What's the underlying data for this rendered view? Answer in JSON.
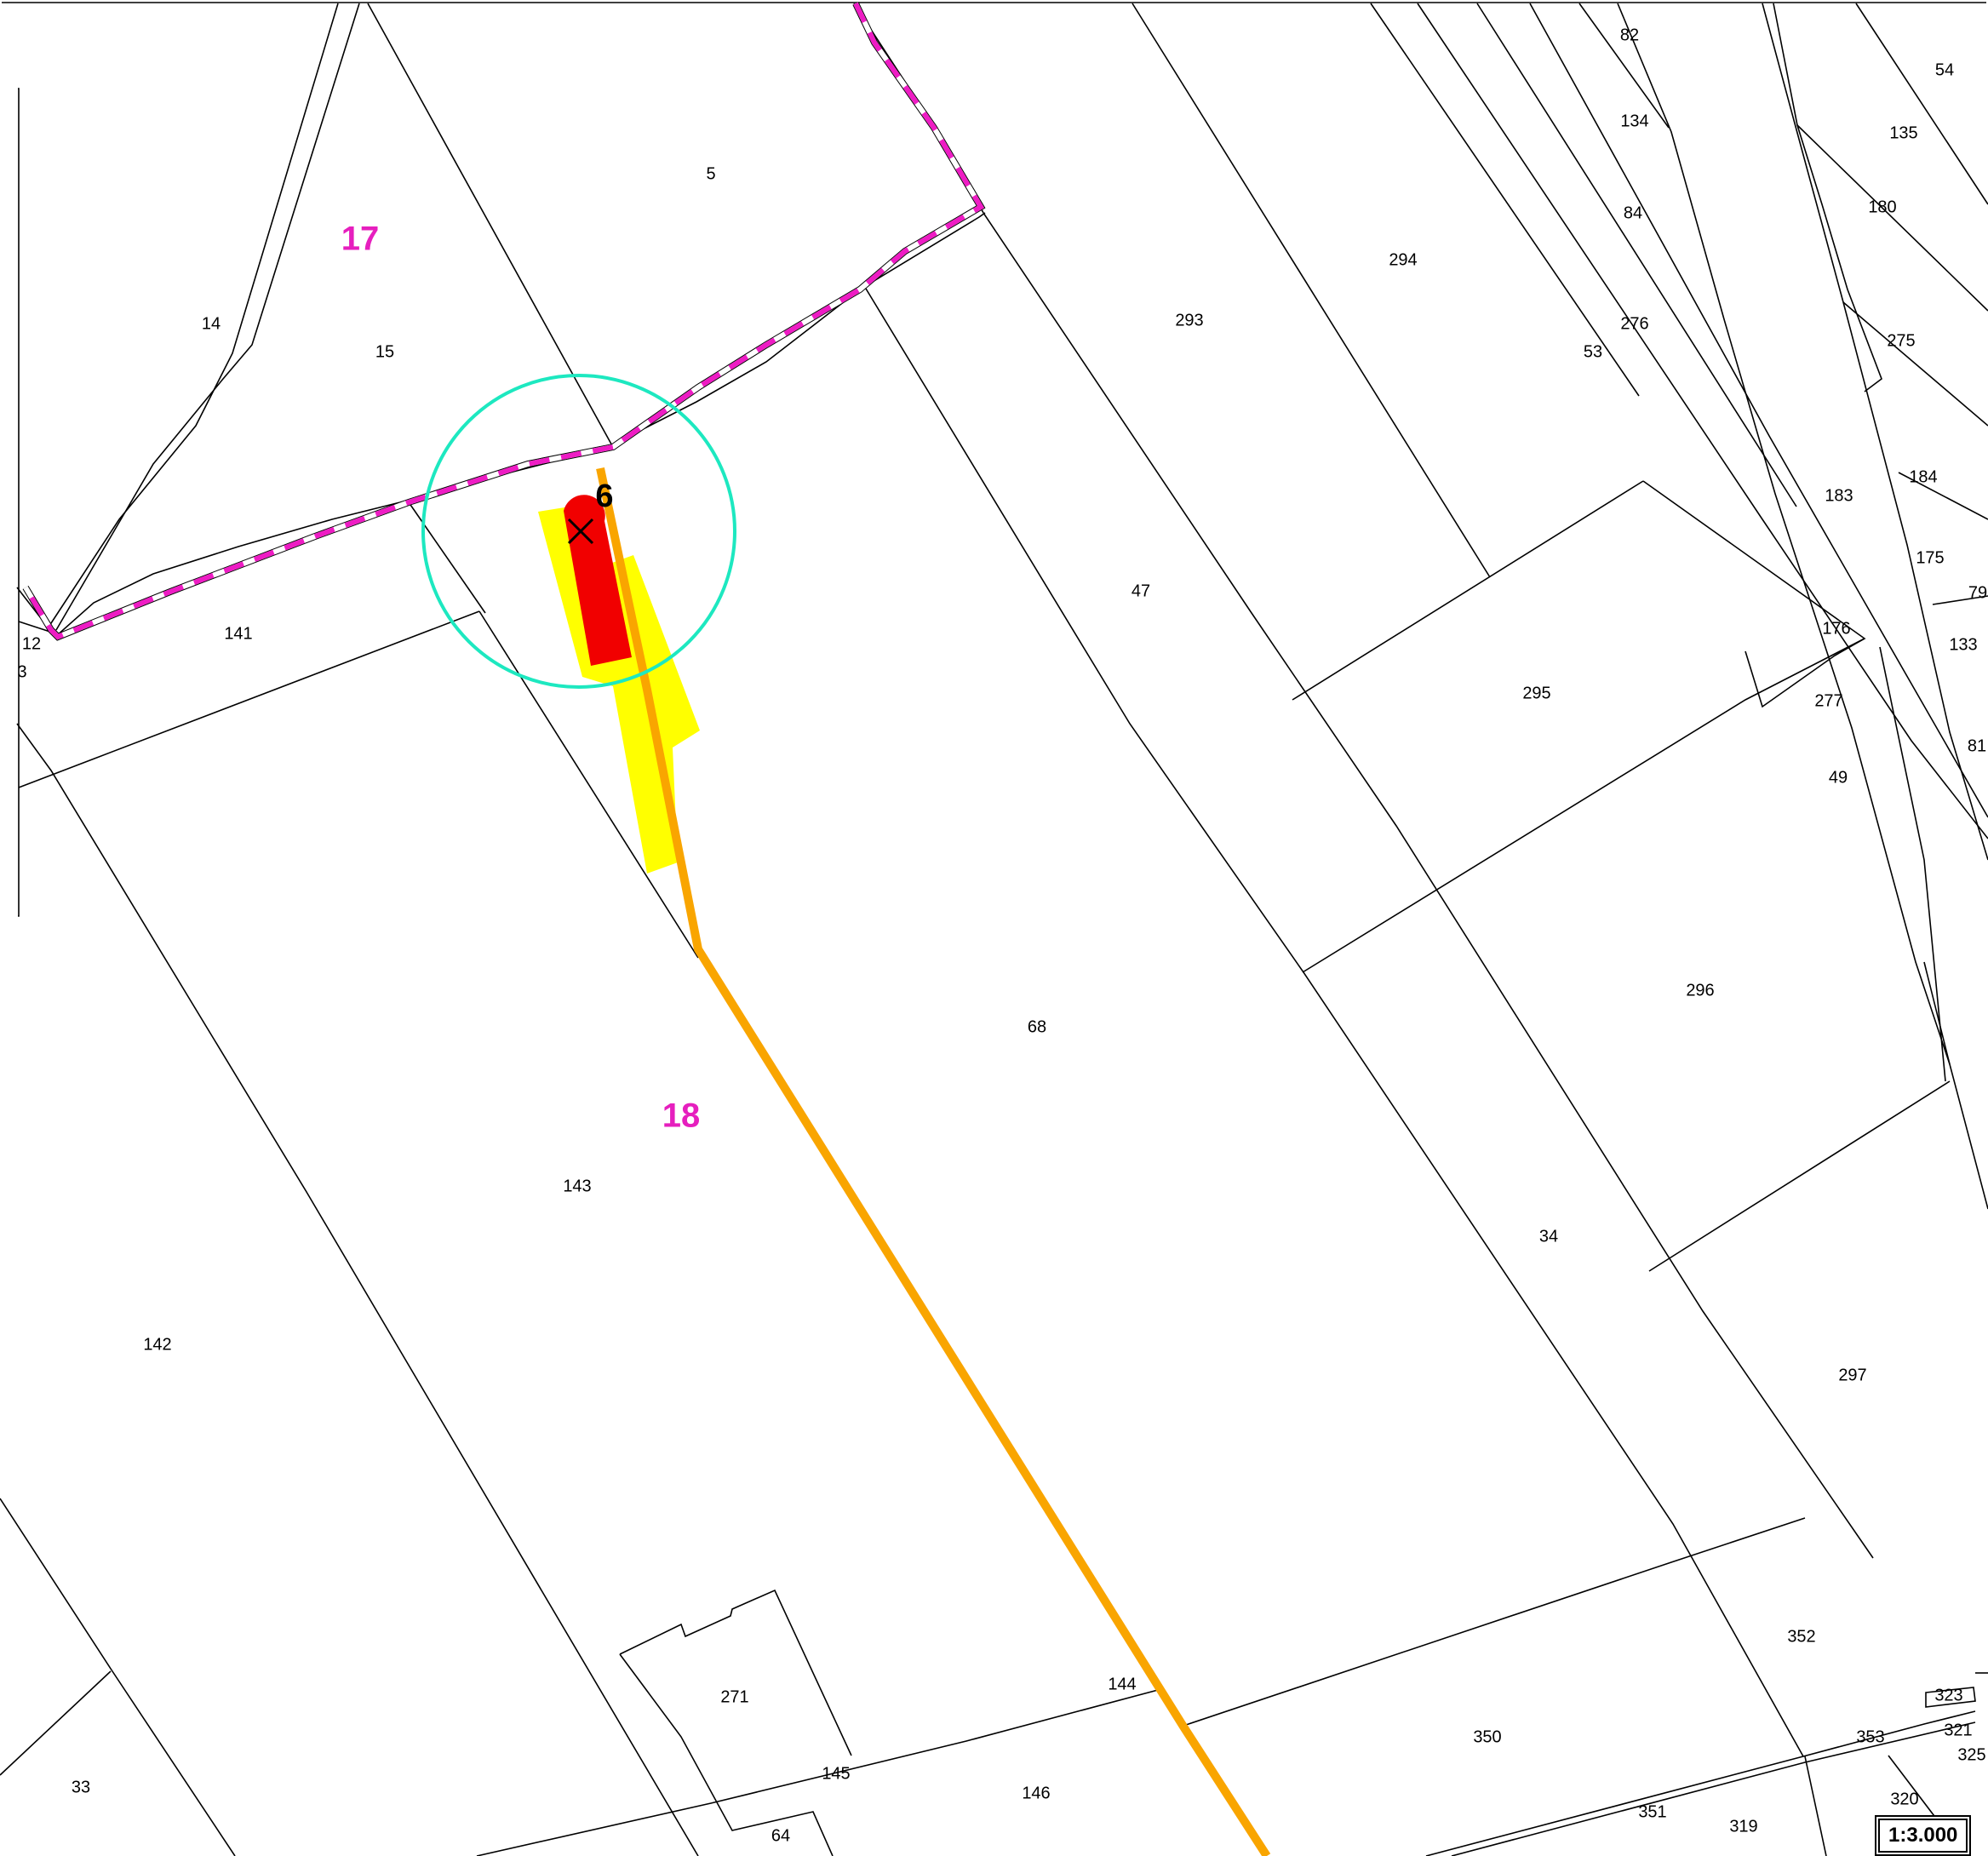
{
  "map": {
    "scale": "1:3.000",
    "colors": {
      "section_label": "#e61fbe",
      "municipal_boundary": "#ee1cc4",
      "road": "#f9a500",
      "buffer_circle": "#1de8c0",
      "highlight_area": "#ffff00",
      "object_fill": "#f10000"
    },
    "sections": {
      "s17": "17",
      "s18": "18"
    },
    "point": {
      "label": "6",
      "marker": "x-cross-icon"
    },
    "parcels": {
      "p5": "5",
      "p14": "14",
      "p15": "15",
      "p141": "141",
      "p12": "12",
      "p3": "3",
      "p143": "143",
      "p142": "142",
      "p33": "33",
      "p271": "271",
      "p145": "145",
      "p64": "64",
      "p146": "146",
      "p144": "144",
      "p68": "68",
      "p47": "47",
      "p293": "293",
      "p294": "294",
      "p53": "53",
      "p276": "276",
      "p84": "84",
      "p134": "134",
      "p82": "82",
      "p54": "54",
      "p135": "135",
      "p180": "180",
      "p275": "275",
      "p184": "184",
      "p183": "183",
      "p175": "175",
      "p79": "79",
      "p133": "133",
      "p176": "176",
      "p295": "295",
      "p277": "277",
      "p81": "81",
      "p49": "49",
      "p296": "296",
      "p34": "34",
      "p297": "297",
      "p352": "352",
      "p350": "350",
      "p323": "323",
      "p321": "321",
      "p325": "325",
      "p353": "353",
      "p320": "320",
      "p351": "351",
      "p319": "319"
    }
  }
}
